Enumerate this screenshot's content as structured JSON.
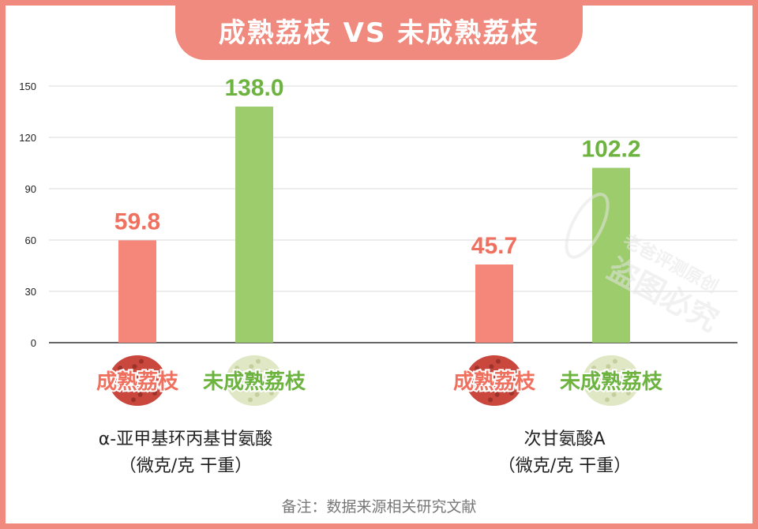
{
  "title": "成熟荔枝 VS 未成熟荔枝",
  "note": "备注：数据来源相关研究文献",
  "watermark": {
    "line1": "老爸评测原创",
    "line2": "盗图必究"
  },
  "colors": {
    "ripe": "#f5877a",
    "unripe": "#9ccc6b",
    "ripe_text": "#f0705f",
    "unripe_text": "#6db33f",
    "frame": "#f08a7e"
  },
  "chart_data": {
    "type": "bar",
    "title": "成熟荔枝 VS 未成熟荔枝",
    "categories": [
      "α-亚甲基环丙基甘氨酸\n（微克/克 干重）",
      "次甘氨酸A\n（微克/克 干重）"
    ],
    "category_lines": [
      [
        "α-亚甲基环丙基甘氨酸",
        "（微克/克 干重）"
      ],
      [
        "次甘氨酸A",
        "（微克/克 干重）"
      ]
    ],
    "series": [
      {
        "name": "成熟荔枝",
        "values": [
          59.8,
          45.7
        ],
        "labels": [
          "59.8",
          "45.7"
        ]
      },
      {
        "name": "未成熟荔枝",
        "values": [
          138.0,
          102.2
        ],
        "labels": [
          "138.0",
          "102.2"
        ]
      }
    ],
    "yticks": [
      "0",
      "30",
      "60",
      "90",
      "120",
      "150"
    ],
    "ylim": [
      0,
      150
    ],
    "grid": true,
    "xlabel": "",
    "ylabel": ""
  }
}
